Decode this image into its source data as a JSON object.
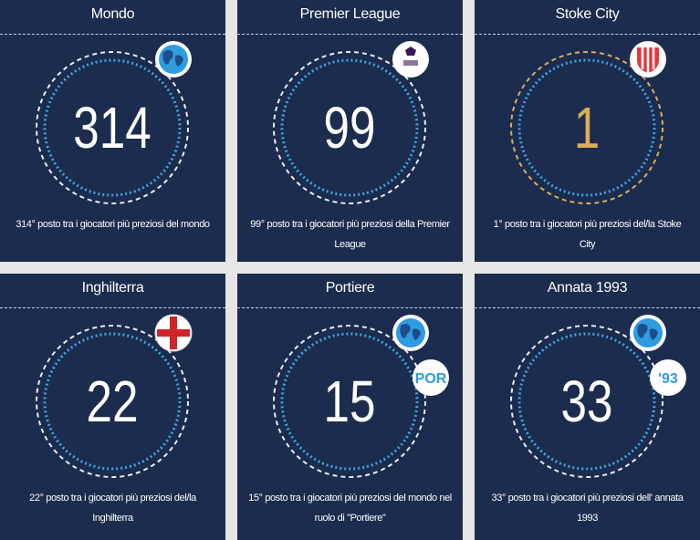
{
  "cards": [
    {
      "title": "Mondo",
      "rank": "314",
      "description": "314° posto tra i giocatori più preziosi del mondo",
      "color": "#ffffff"
    },
    {
      "title": "Premier League",
      "rank": "99",
      "description": "99° posto tra i giocatori più preziosi della Premier League",
      "color": "#ffffff"
    },
    {
      "title": "Stoke City",
      "rank": "1",
      "description": "1° posto tra i giocatori più preziosi del/la Stoke City",
      "color": "#d9ae55"
    },
    {
      "title": "Inghilterra",
      "rank": "22",
      "description": "22° posto tra i giocatori più preziosi del/la Inghilterra",
      "color": "#ffffff"
    },
    {
      "title": "Portiere",
      "rank": "15",
      "description": "15° posto tra i giocatori più preziosi del mondo nel ruolo di \"Portiere\"",
      "color": "#ffffff",
      "badge": "POR"
    },
    {
      "title": "Annata 1993",
      "rank": "33",
      "description": "33° posto tra i giocatori più preziosi dell' annata 1993",
      "color": "#ffffff",
      "badge": "'93"
    }
  ]
}
